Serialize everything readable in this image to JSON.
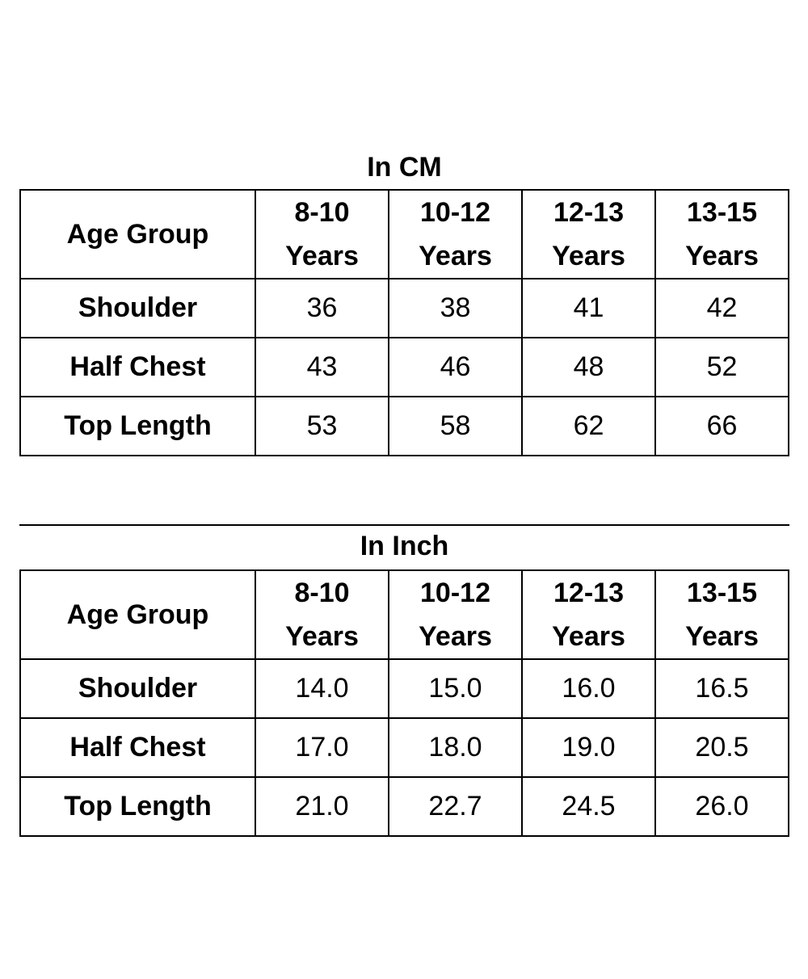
{
  "tables": [
    {
      "caption": "In CM",
      "corner_label": "Age Group",
      "columns": [
        {
          "line1": "8-10",
          "line2": "Years"
        },
        {
          "line1": "10-12",
          "line2": "Years"
        },
        {
          "line1": "12-13",
          "line2": "Years"
        },
        {
          "line1": "13-15",
          "line2": "Years"
        }
      ],
      "rows": [
        {
          "label": "Shoulder",
          "values": [
            "36",
            "38",
            "41",
            "42"
          ]
        },
        {
          "label": "Half Chest",
          "values": [
            "43",
            "46",
            "48",
            "52"
          ]
        },
        {
          "label": "Top Length",
          "values": [
            "53",
            "58",
            "62",
            "66"
          ]
        }
      ]
    },
    {
      "caption": "In Inch",
      "corner_label": "Age Group",
      "columns": [
        {
          "line1": "8-10",
          "line2": "Years"
        },
        {
          "line1": "10-12",
          "line2": "Years"
        },
        {
          "line1": "12-13",
          "line2": "Years"
        },
        {
          "line1": "13-15",
          "line2": "Years"
        }
      ],
      "rows": [
        {
          "label": "Shoulder",
          "values": [
            "14.0",
            "15.0",
            "16.0",
            "16.5"
          ]
        },
        {
          "label": "Half Chest",
          "values": [
            "17.0",
            "18.0",
            "19.0",
            "20.5"
          ]
        },
        {
          "label": "Top Length",
          "values": [
            "21.0",
            "22.7",
            "24.5",
            "26.0"
          ]
        }
      ]
    }
  ]
}
